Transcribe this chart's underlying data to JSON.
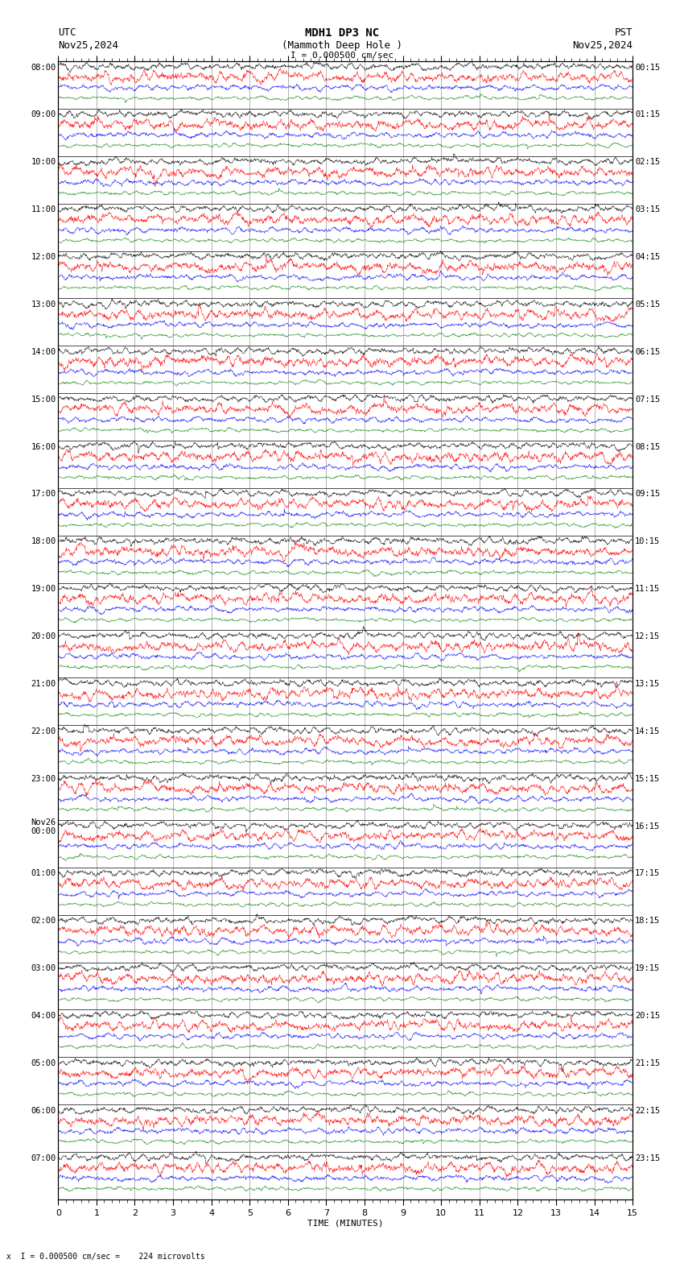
{
  "title_line1": "MDH1 DP3 NC",
  "title_line2": "(Mammoth Deep Hole )",
  "title_scale": "I = 0.000500 cm/sec",
  "left_label": "UTC",
  "left_date": "Nov25,2024",
  "right_label": "PST",
  "right_date": "Nov25,2024",
  "xlabel": "TIME (MINUTES)",
  "bottom_note": "x  I = 0.000500 cm/sec =    224 microvolts",
  "x_ticks": [
    0,
    1,
    2,
    3,
    4,
    5,
    6,
    7,
    8,
    9,
    10,
    11,
    12,
    13,
    14,
    15
  ],
  "utc_times": [
    "08:00",
    "",
    "",
    "",
    "09:00",
    "",
    "",
    "",
    "10:00",
    "",
    "",
    "",
    "11:00",
    "",
    "",
    "",
    "12:00",
    "",
    "",
    "",
    "13:00",
    "",
    "",
    "",
    "14:00",
    "",
    "",
    "",
    "15:00",
    "",
    "",
    "",
    "16:00",
    "",
    "",
    "",
    "17:00",
    "",
    "",
    "",
    "18:00",
    "",
    "",
    "",
    "19:00",
    "",
    "",
    "",
    "20:00",
    "",
    "",
    "",
    "21:00",
    "",
    "",
    "",
    "22:00",
    "",
    "",
    "",
    "23:00",
    "",
    "",
    "",
    "Nov26\n00:00",
    "",
    "",
    "",
    "01:00",
    "",
    "",
    "",
    "02:00",
    "",
    "",
    "",
    "03:00",
    "",
    "",
    "",
    "04:00",
    "",
    "",
    "",
    "05:00",
    "",
    "",
    "",
    "06:00",
    "",
    "",
    "",
    "07:00",
    "",
    "",
    ""
  ],
  "pst_times": [
    "00:15",
    "",
    "",
    "",
    "01:15",
    "",
    "",
    "",
    "02:15",
    "",
    "",
    "",
    "03:15",
    "",
    "",
    "",
    "04:15",
    "",
    "",
    "",
    "05:15",
    "",
    "",
    "",
    "06:15",
    "",
    "",
    "",
    "07:15",
    "",
    "",
    "",
    "08:15",
    "",
    "",
    "",
    "09:15",
    "",
    "",
    "",
    "10:15",
    "",
    "",
    "",
    "11:15",
    "",
    "",
    "",
    "12:15",
    "",
    "",
    "",
    "13:15",
    "",
    "",
    "",
    "14:15",
    "",
    "",
    "",
    "15:15",
    "",
    "",
    "",
    "16:15",
    "",
    "",
    "",
    "17:15",
    "",
    "",
    "",
    "18:15",
    "",
    "",
    "",
    "19:15",
    "",
    "",
    "",
    "20:15",
    "",
    "",
    "",
    "21:15",
    "",
    "",
    "",
    "22:15",
    "",
    "",
    "",
    "23:15",
    "",
    "",
    ""
  ],
  "n_rows": 24,
  "traces_per_row": 4,
  "trace_colors": [
    "black",
    "red",
    "blue",
    "green"
  ],
  "noise_amp": [
    0.35,
    0.55,
    0.3,
    0.2
  ],
  "background_color": "white",
  "grid_color": "#777777",
  "fig_width": 8.5,
  "fig_height": 15.84,
  "dpi": 100
}
